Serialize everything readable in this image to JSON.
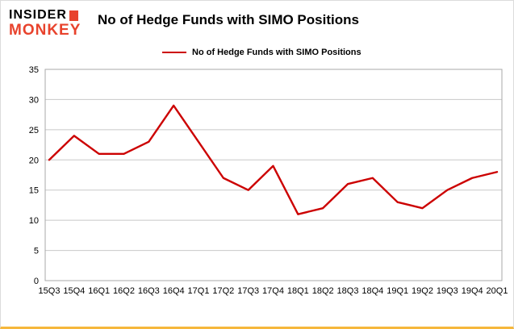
{
  "logo": {
    "line1": "INSIDER",
    "line2": "MONKEY"
  },
  "header": {
    "title": "No of Hedge Funds with SIMO Positions"
  },
  "legend": {
    "label": "No of Hedge Funds with SIMO Positions",
    "color": "#cc0000"
  },
  "chart_data": {
    "type": "line",
    "title": "No of Hedge Funds with SIMO Positions",
    "categories": [
      "15Q3",
      "15Q4",
      "16Q1",
      "16Q2",
      "16Q3",
      "16Q4",
      "17Q1",
      "17Q2",
      "17Q3",
      "17Q4",
      "18Q1",
      "18Q2",
      "18Q3",
      "18Q4",
      "19Q1",
      "19Q2",
      "19Q3",
      "19Q4",
      "20Q1"
    ],
    "series": [
      {
        "name": "No of Hedge Funds with SIMO Positions",
        "color": "#cc0000",
        "values": [
          20,
          24,
          21,
          21,
          23,
          29,
          23,
          17,
          15,
          19,
          11,
          12,
          16,
          17,
          13,
          12,
          15,
          17,
          18
        ]
      }
    ],
    "xlabel": "",
    "ylabel": "",
    "ylim": [
      0,
      35
    ],
    "yticks": [
      0,
      5,
      10,
      15,
      20,
      25,
      30,
      35
    ],
    "grid": true,
    "legend_position": "top-left",
    "grid_color": "#c8c8c8",
    "border_color": "#aaaaaa"
  }
}
